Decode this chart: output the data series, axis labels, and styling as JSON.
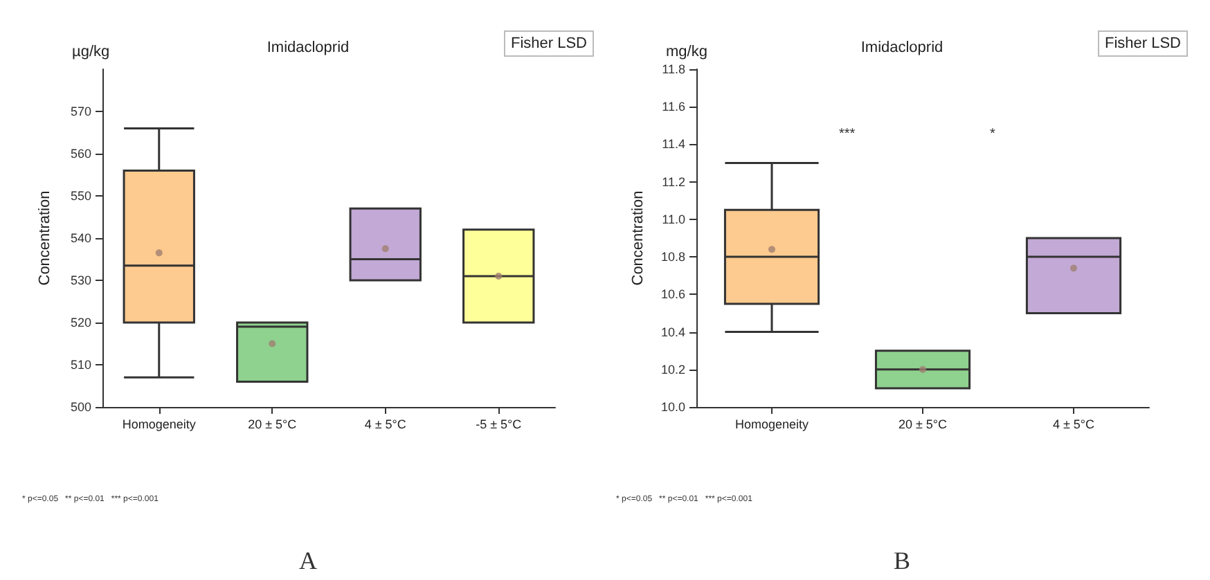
{
  "chart_data": [
    {
      "type": "box",
      "title": "Imidacloprid",
      "ylabel": "Concentration",
      "categories": [
        "Homogeneity",
        "20 ± 5°C",
        "4 ± 5°C",
        "-5 ± 5°C"
      ],
      "colors": [
        "#fdca8f",
        "#8fd18f",
        "#c3a9d6",
        "#ffff99"
      ],
      "boxes": [
        {
          "low": 507,
          "q1": 520,
          "median": 533.5,
          "q3": 556,
          "high": 566,
          "mean": 536.5
        },
        {
          "low": 506,
          "q1": 506,
          "median": 519,
          "q3": 520,
          "high": 520,
          "mean": 515
        },
        {
          "low": 530,
          "q1": 530,
          "median": 535,
          "q3": 547,
          "high": 547,
          "mean": 537.5
        },
        {
          "low": 520,
          "q1": 520,
          "median": 531,
          "q3": 542,
          "high": 542,
          "mean": 531
        }
      ],
      "ylim": [
        500,
        580
      ],
      "yticks": [
        500,
        510,
        520,
        530,
        540,
        550,
        560,
        570
      ],
      "grid": false,
      "annotations": [
        "µg/kg",
        "Fisher LSD",
        "* p<=0.05   ** p<=0.01   *** p<=0.001",
        "A"
      ]
    },
    {
      "type": "box",
      "title": "Imidacloprid",
      "ylabel": "Concentration",
      "categories": [
        "Homogeneity",
        "20 ± 5°C",
        "4 ± 5°C"
      ],
      "colors": [
        "#fdca8f",
        "#8fd18f",
        "#c3a9d6"
      ],
      "boxes": [
        {
          "low": 10.4,
          "q1": 10.55,
          "median": 10.8,
          "q3": 11.05,
          "high": 11.3,
          "mean": 10.84
        },
        {
          "low": 10.1,
          "q1": 10.1,
          "median": 10.2,
          "q3": 10.3,
          "high": 10.3,
          "mean": 10.2
        },
        {
          "low": 10.5,
          "q1": 10.5,
          "median": 10.8,
          "q3": 10.9,
          "high": 10.9,
          "mean": 10.74
        }
      ],
      "ylim": [
        10.0,
        11.8
      ],
      "yticks": [
        {
          "value": 10.0,
          "label": "10.0"
        },
        10.2,
        10.4,
        10.6,
        10.8,
        {
          "value": 11.0,
          "label": "11.0"
        },
        11.2,
        11.4,
        11.6,
        11.8
      ],
      "grid": false,
      "annotations": [
        "mg/kg",
        "Fisher LSD",
        "* p<=0.05   ** p<=0.01   *** p<=0.001",
        "B",
        "***",
        "*"
      ]
    }
  ]
}
